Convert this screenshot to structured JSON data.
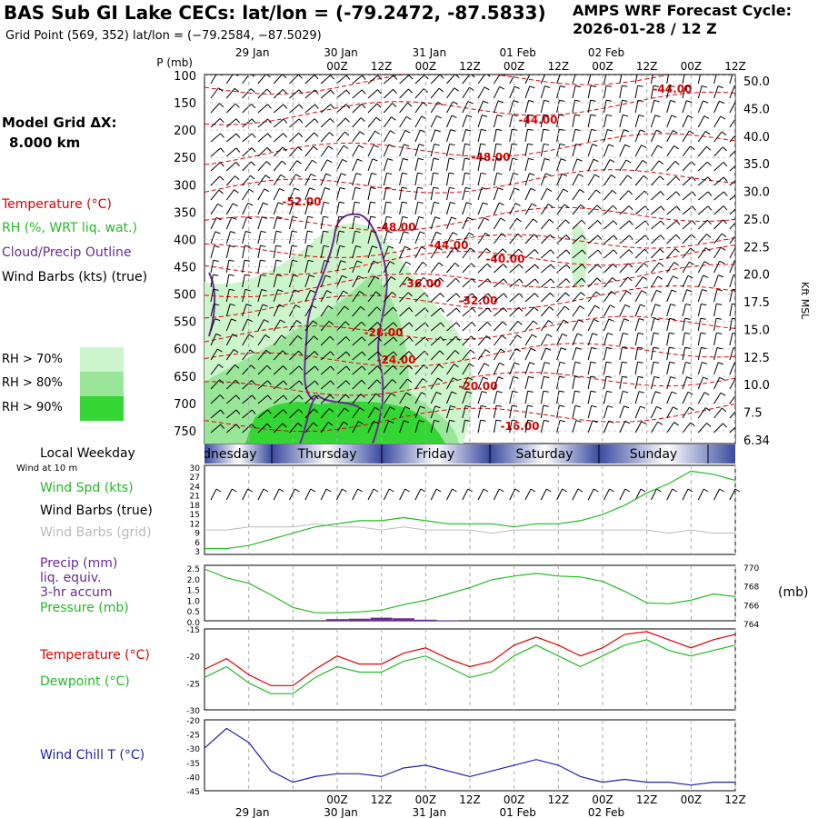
{
  "header": {
    "title": "BAS Sub GI Lake CECs:  lat/lon = (-79.2472, -87.5833)",
    "grid_point": "Grid Point (569, 352) lat/lon = (−79.2584, −87.5029)",
    "cycle_label": "AMPS WRF Forecast Cycle:",
    "cycle_value": "2026-01-28 / 12  Z"
  },
  "model_grid": {
    "label": "Model Grid ΔX:",
    "value": "8.000 km"
  },
  "legend": {
    "temperature": "Temperature (°C)",
    "rh": "RH (%, WRT liq. wat.)",
    "cloud": "Cloud/Precip Outline",
    "wind_barbs": "Wind Barbs (kts) (true)",
    "rh70": "RH > 70%",
    "rh80": "RH > 80%",
    "rh90": "RH > 90%"
  },
  "colors": {
    "temperature": "#e00000",
    "rh70": "#ccf5cc",
    "rh80": "#99e699",
    "rh90": "#33d633",
    "cloud_outline": "#6a2a96",
    "green_series": "#22bb22",
    "wind_chill": "#1f1fb0",
    "weekday_band": "#3a4aa0"
  },
  "time_axis": {
    "top_ticks": [
      "00Z",
      "12Z",
      "00Z",
      "12Z",
      "00Z",
      "12Z",
      "00Z",
      "12Z",
      "00Z",
      "12Z"
    ],
    "dates": [
      "29 Jan",
      "30 Jan",
      "31 Jan",
      "01 Feb",
      "02 Feb"
    ]
  },
  "weekdays": {
    "title": "Local Weekday",
    "wind_note": "Wind at 10 m",
    "days": [
      "Wednesday",
      "Thursday",
      "Friday",
      "Saturday",
      "Sunday"
    ]
  },
  "panel_labels": {
    "wind_spd": "Wind Spd (kts)",
    "wind_barbs_true": "Wind Barbs (true)",
    "wind_barbs_grid": "Wind Barbs (grid)",
    "precip1": "Precip (mm)",
    "precip2": "liq. equiv.",
    "precip3": "3-hr accum",
    "pressure": "Pressure (mb)",
    "pressure_unit": "(mb)",
    "temperature": "Temperature (°C)",
    "dewpoint": "Dewpoint (°C)",
    "wind_chill": "Wind Chill T (°C)"
  },
  "chart_data": [
    {
      "type": "heatmap",
      "name": "cross-section",
      "y_axis_label": "P (mb)",
      "y_ticks": [
        "100",
        "150",
        "200",
        "250",
        "300",
        "350",
        "400",
        "450",
        "500",
        "550",
        "600",
        "650",
        "700",
        "750"
      ],
      "right_axis_label": "Kft MSL",
      "right_ticks": [
        "50.0",
        "45.0",
        "40.0",
        "35.0",
        "30.0",
        "25.0",
        "22.5",
        "20.0",
        "17.5",
        "15.0",
        "12.5",
        "10.0",
        "7.5",
        "6.34"
      ],
      "temperature_labels": [
        "-44.00",
        "-44.00",
        "-48.00",
        "-52.00",
        "-48.00",
        "-44.00",
        "-40.00",
        "-36.00",
        "-32.00",
        "-28.00",
        "-24.00",
        "-20.00",
        "-16.00"
      ]
    },
    {
      "type": "line",
      "name": "wind-speed",
      "y_ticks": [
        "30",
        "27",
        "24",
        "21",
        "18",
        "15",
        "12",
        "9",
        "6",
        "3"
      ],
      "ylim": [
        3,
        30
      ],
      "x": [
        0,
        6,
        12,
        18,
        24,
        30,
        36,
        42,
        48,
        54,
        60,
        66,
        72,
        78,
        84,
        90,
        96,
        102,
        108,
        114,
        120,
        126,
        132,
        138,
        144
      ],
      "series": [
        {
          "values": [
            4,
            4,
            5,
            7,
            9,
            11,
            12,
            13,
            13,
            14,
            13,
            12,
            12,
            12,
            11,
            12,
            12,
            13,
            15,
            18,
            22,
            25,
            29,
            28,
            26
          ]
        },
        {
          "values": [
            10,
            10,
            11,
            11,
            11,
            12,
            11,
            11,
            10,
            11,
            10,
            10,
            10,
            9,
            10,
            10,
            10,
            10,
            10,
            10,
            10,
            9,
            10,
            9,
            9
          ]
        }
      ]
    },
    {
      "type": "line",
      "name": "pressure-precip",
      "left_ticks": [
        "2.5",
        "2.0",
        "1.5",
        "1.0",
        "0.5",
        "0.0"
      ],
      "right_ticks": [
        "770",
        "768",
        "766",
        "764"
      ],
      "x": [
        0,
        6,
        12,
        18,
        24,
        30,
        36,
        42,
        48,
        54,
        60,
        66,
        72,
        78,
        84,
        90,
        96,
        102,
        108,
        114,
        120,
        126,
        132,
        138,
        144
      ],
      "pressure": [
        769.8,
        768.8,
        768.2,
        766.9,
        765.5,
        764.9,
        764.9,
        765.0,
        765.2,
        765.8,
        766.3,
        767.0,
        767.7,
        768.6,
        769.0,
        769.3,
        769.0,
        768.9,
        768.4,
        767.3,
        766.0,
        765.9,
        766.3,
        767.0,
        766.7
      ],
      "precip": [
        0,
        0,
        0,
        0,
        0,
        0,
        0.08,
        0.1,
        0.15,
        0.12,
        0.05,
        0.02,
        0,
        0,
        0,
        0,
        0,
        0,
        0,
        0,
        0,
        0,
        0,
        0,
        0
      ]
    },
    {
      "type": "line",
      "name": "temperature-dewpoint",
      "y_ticks": [
        "-15",
        "-20",
        "-25",
        "-30"
      ],
      "ylim": [
        -30,
        -15
      ],
      "x": [
        0,
        6,
        12,
        18,
        24,
        30,
        36,
        42,
        48,
        54,
        60,
        66,
        72,
        78,
        84,
        90,
        96,
        102,
        108,
        114,
        120,
        126,
        132,
        138,
        144
      ],
      "series": [
        {
          "name": "Temperature",
          "values": [
            -22.5,
            -20.5,
            -23.5,
            -25.5,
            -25.5,
            -22.5,
            -20,
            -21.5,
            -21.5,
            -19.5,
            -18.5,
            -20.5,
            -22,
            -21,
            -18,
            -16.5,
            -18,
            -20,
            -18.5,
            -16,
            -15.5,
            -17,
            -18.5,
            -17,
            -16
          ]
        },
        {
          "name": "Dewpoint",
          "values": [
            -24,
            -22,
            -25,
            -27,
            -27,
            -24,
            -22,
            -23,
            -23,
            -21,
            -20,
            -22,
            -24,
            -23,
            -20,
            -18,
            -20,
            -22,
            -20,
            -18,
            -17,
            -19,
            -20,
            -19,
            -18
          ]
        }
      ]
    },
    {
      "type": "line",
      "name": "wind-chill",
      "y_ticks": [
        "-20",
        "-25",
        "-30",
        "-35",
        "-40",
        "-45"
      ],
      "ylim": [
        -45,
        -20
      ],
      "x": [
        0,
        6,
        12,
        18,
        24,
        30,
        36,
        42,
        48,
        54,
        60,
        66,
        72,
        78,
        84,
        90,
        96,
        102,
        108,
        114,
        120,
        126,
        132,
        138,
        144
      ],
      "values": [
        -30,
        -23,
        -28,
        -38,
        -42,
        -40,
        -39,
        -39,
        -40,
        -37,
        -36,
        -38,
        -40,
        -38,
        -36,
        -34,
        -36,
        -40,
        -42,
        -41,
        -42,
        -42,
        -43,
        -42,
        -42
      ]
    }
  ]
}
